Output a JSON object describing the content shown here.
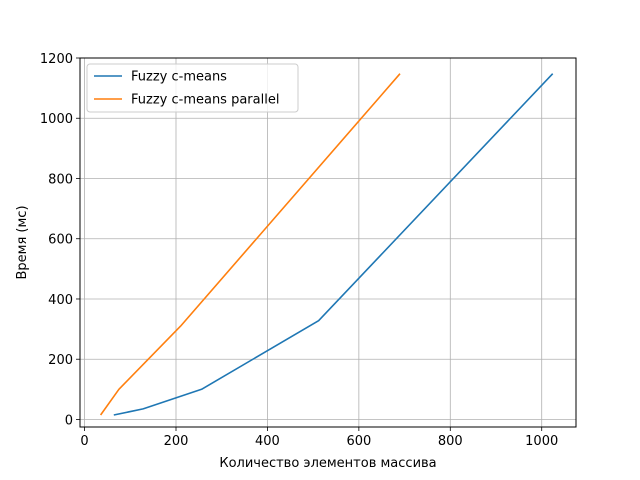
{
  "chart_data": {
    "type": "line",
    "title": "",
    "xlabel": "Количество элементов массива",
    "ylabel": "Время (мс)",
    "xlim": [
      -10,
      1075
    ],
    "ylim": [
      -25,
      1200
    ],
    "xticks": [
      0,
      200,
      400,
      600,
      800,
      1000
    ],
    "yticks": [
      0,
      200,
      400,
      600,
      800,
      1000,
      1200
    ],
    "grid": true,
    "legend_position": "top-left",
    "series": [
      {
        "name": "Fuzzy c-means",
        "color": "#1f77b4",
        "x": [
          64,
          128,
          256,
          512,
          1024
        ],
        "y": [
          15,
          35,
          100,
          328,
          1148
        ]
      },
      {
        "name": "Fuzzy c-means parallel",
        "color": "#ff7f0e",
        "x": [
          35,
          75,
          210,
          690
        ],
        "y": [
          15,
          100,
          310,
          1148
        ]
      }
    ]
  }
}
